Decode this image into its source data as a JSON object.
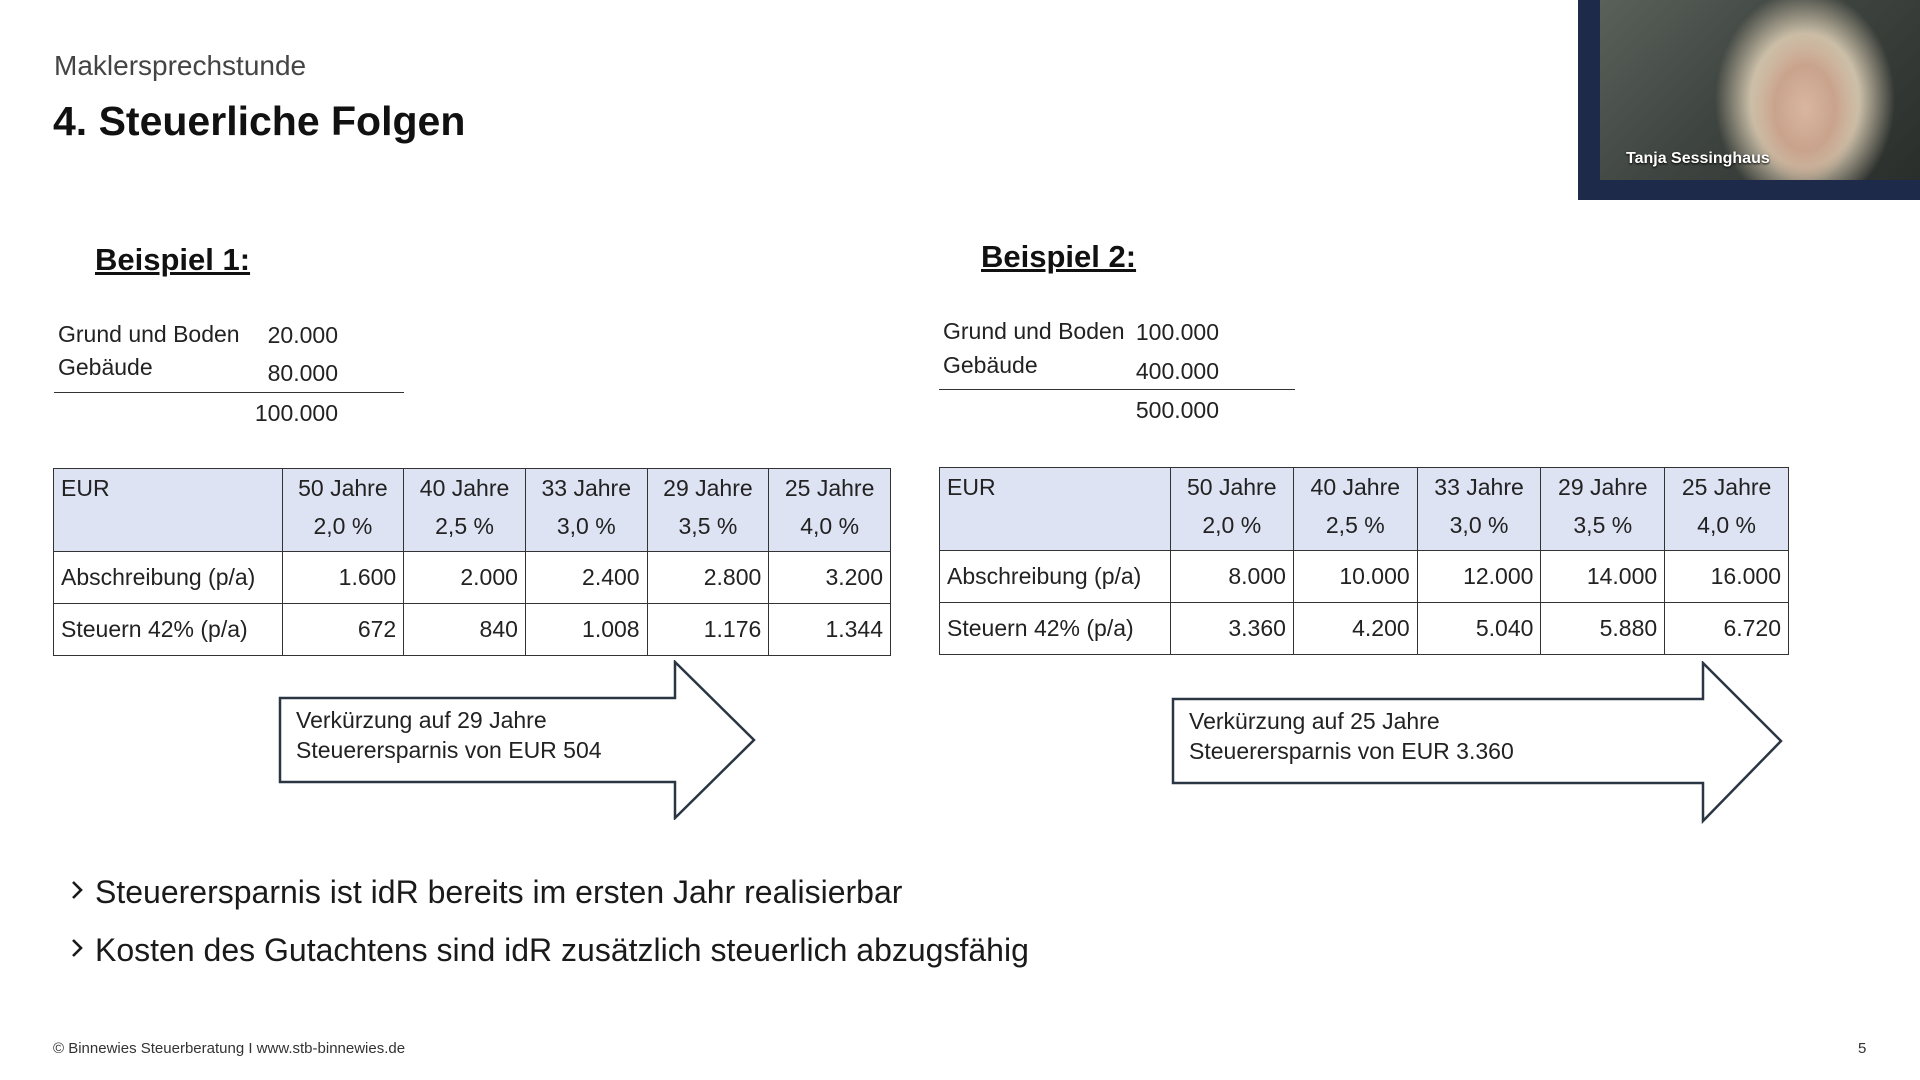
{
  "slide": {
    "subtitle": "Maklersprechstunde",
    "title": "4. Steuerliche Folgen"
  },
  "webcam": {
    "participant_name": "Tanja Sessinghaus"
  },
  "example1": {
    "heading": "Beispiel 1:",
    "rows": [
      {
        "label": "Grund und Boden",
        "value": "20.000"
      },
      {
        "label": "Gebäude",
        "value": "80.000"
      }
    ],
    "total": "100.000",
    "table": {
      "corner": "EUR",
      "columns": [
        {
          "years": "50 Jahre",
          "rate": "2,0 %"
        },
        {
          "years": "40 Jahre",
          "rate": "2,5 %"
        },
        {
          "years": "33 Jahre",
          "rate": "3,0 %"
        },
        {
          "years": "29 Jahre",
          "rate": "3,5 %"
        },
        {
          "years": "25 Jahre",
          "rate": "4,0 %"
        }
      ],
      "rows": [
        {
          "label": "Abschreibung (p/a)",
          "values": [
            "1.600",
            "2.000",
            "2.400",
            "2.800",
            "3.200"
          ]
        },
        {
          "label": "Steuern 42% (p/a)",
          "values": [
            "672",
            "840",
            "1.008",
            "1.176",
            "1.344"
          ]
        }
      ]
    },
    "arrow": {
      "line1": "Verkürzung auf 29 Jahre",
      "line2": "Steuerersparnis von EUR 504"
    }
  },
  "example2": {
    "heading": "Beispiel 2:",
    "rows": [
      {
        "label": "Grund und Boden",
        "value": "100.000"
      },
      {
        "label": "Gebäude",
        "value": "400.000"
      }
    ],
    "total": "500.000",
    "table": {
      "corner": "EUR",
      "columns": [
        {
          "years": "50 Jahre",
          "rate": "2,0 %"
        },
        {
          "years": "40 Jahre",
          "rate": "2,5 %"
        },
        {
          "years": "33 Jahre",
          "rate": "3,0 %"
        },
        {
          "years": "29 Jahre",
          "rate": "3,5 %"
        },
        {
          "years": "25 Jahre",
          "rate": "4,0 %"
        }
      ],
      "rows": [
        {
          "label": "Abschreibung (p/a)",
          "values": [
            "8.000",
            "10.000",
            "12.000",
            "14.000",
            "16.000"
          ]
        },
        {
          "label": "Steuern 42% (p/a)",
          "values": [
            "3.360",
            "4.200",
            "5.040",
            "5.880",
            "6.720"
          ]
        }
      ]
    },
    "arrow": {
      "line1": "Verkürzung auf 25 Jahre",
      "line2": "Steuerersparnis von EUR 3.360"
    }
  },
  "bullets": [
    {
      "icon": "chevron-right-icon",
      "text": "Steuerersparnis ist idR bereits im ersten Jahr realisierbar"
    },
    {
      "icon": "chevron-right-icon",
      "text": "Kosten des Gutachtens sind idR zusätzlich steuerlich abzugsfähig"
    }
  ],
  "footer": {
    "copyright": "© Binnewies Steuerberatung I www.stb-binnewies.de",
    "page_number": "5"
  },
  "colors": {
    "table_header_bg": "#dde3f3",
    "webcam_frame": "#1d2a4a"
  }
}
